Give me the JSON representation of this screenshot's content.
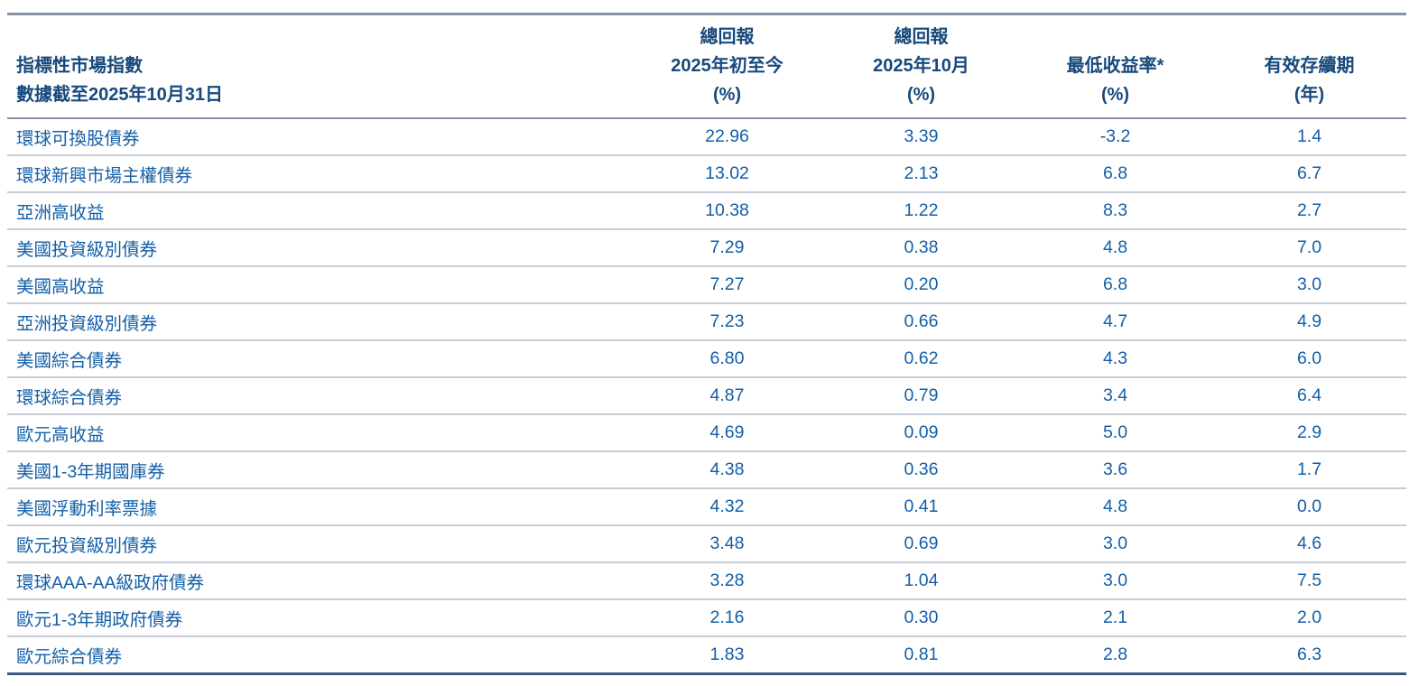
{
  "table": {
    "title_semantic": "benchmark-market-indices-returns",
    "header": {
      "col_name_line1": "指標性市場指數",
      "col_name_line2": "數據截至2025年10月31日",
      "col_ytd_line1": "總回報",
      "col_ytd_line2": "2025年初至今",
      "col_ytd_line3": "(%)",
      "col_month_line1": "總回報",
      "col_month_line2": "2025年10月",
      "col_month_line3": "(%)",
      "col_ytw_line1": "最低收益率*",
      "col_ytw_line2": "(%)",
      "col_duration_line1": "有效存續期",
      "col_duration_line2": "(年)"
    },
    "rows": [
      {
        "name": "環球可換股債券",
        "ytd": "22.96",
        "month": "3.39",
        "ytw": "-3.2",
        "duration": "1.4"
      },
      {
        "name": "環球新興市場主權債券",
        "ytd": "13.02",
        "month": "2.13",
        "ytw": "6.8",
        "duration": "6.7"
      },
      {
        "name": "亞洲高收益",
        "ytd": "10.38",
        "month": "1.22",
        "ytw": "8.3",
        "duration": "2.7"
      },
      {
        "name": "美國投資級別債券",
        "ytd": "7.29",
        "month": "0.38",
        "ytw": "4.8",
        "duration": "7.0"
      },
      {
        "name": "美國高收益",
        "ytd": "7.27",
        "month": "0.20",
        "ytw": "6.8",
        "duration": "3.0"
      },
      {
        "name": "亞洲投資級別債券",
        "ytd": "7.23",
        "month": "0.66",
        "ytw": "4.7",
        "duration": "4.9"
      },
      {
        "name": "美國綜合債券",
        "ytd": "6.80",
        "month": "0.62",
        "ytw": "4.3",
        "duration": "6.0"
      },
      {
        "name": "環球綜合債券",
        "ytd": "4.87",
        "month": "0.79",
        "ytw": "3.4",
        "duration": "6.4"
      },
      {
        "name": "歐元高收益",
        "ytd": "4.69",
        "month": "0.09",
        "ytw": "5.0",
        "duration": "2.9"
      },
      {
        "name": "美國1-3年期國庫券",
        "ytd": "4.38",
        "month": "0.36",
        "ytw": "3.6",
        "duration": "1.7"
      },
      {
        "name": "美國浮動利率票據",
        "ytd": "4.32",
        "month": "0.41",
        "ytw": "4.8",
        "duration": "0.0"
      },
      {
        "name": "歐元投資級別債券",
        "ytd": "3.48",
        "month": "0.69",
        "ytw": "3.0",
        "duration": "4.6"
      },
      {
        "name": "環球AAA-AA級政府債券",
        "ytd": "3.28",
        "month": "1.04",
        "ytw": "3.0",
        "duration": "7.5"
      },
      {
        "name": "歐元1-3年期政府債券",
        "ytd": "2.16",
        "month": "0.30",
        "ytw": "2.1",
        "duration": "2.0"
      },
      {
        "name": "歐元綜合債券",
        "ytd": "1.83",
        "month": "0.81",
        "ytw": "2.8",
        "duration": "6.3"
      }
    ]
  },
  "colors": {
    "header_text": "#17497C",
    "body_text": "#135FA7",
    "outer_border_top": "#8593A6",
    "outer_border_bottom": "#3A5883",
    "row_separator": "#C9CDD3",
    "background": "#FFFFFF"
  }
}
